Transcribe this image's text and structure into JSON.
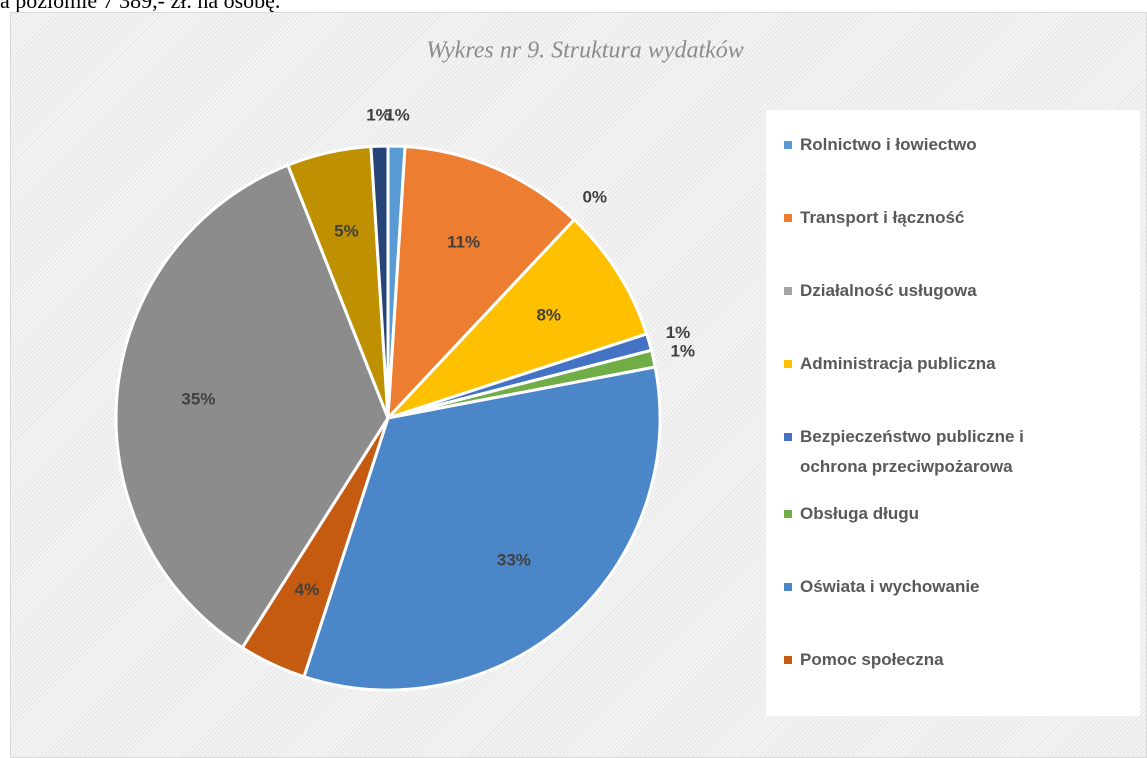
{
  "header_text": "a poziomie 7 389,- zł. na osobę.",
  "chart_data": {
    "type": "pie",
    "title": "Wykres nr 9. Struktura wydatków",
    "categories": [
      "Rolnictwo i łowiectwo",
      "Transport i łączność",
      "Działalność usługowa",
      "Administracja publiczna",
      "Bezpieczeństwo publiczne i ochrona przeciwpożarowa",
      "Obsługa długu",
      "Oświata i wychowanie",
      "Pomoc społeczna",
      null,
      null,
      null
    ],
    "values": [
      1,
      11,
      0,
      8,
      1,
      1,
      33,
      4,
      35,
      5,
      1
    ],
    "value_labels": [
      "1%",
      "11%",
      "0%",
      "8%",
      "1%",
      "1%",
      "33%",
      "4%",
      "35%",
      "5%",
      "1%"
    ],
    "colors": [
      "#5b9bd5",
      "#ed7d31",
      "#a5a5a5",
      "#ffc000",
      "#4472c4",
      "#70ad47",
      "#4a86c8",
      "#c55a11",
      "#8c8c8c",
      "#bf9000",
      "#264478"
    ],
    "legend": "right"
  }
}
